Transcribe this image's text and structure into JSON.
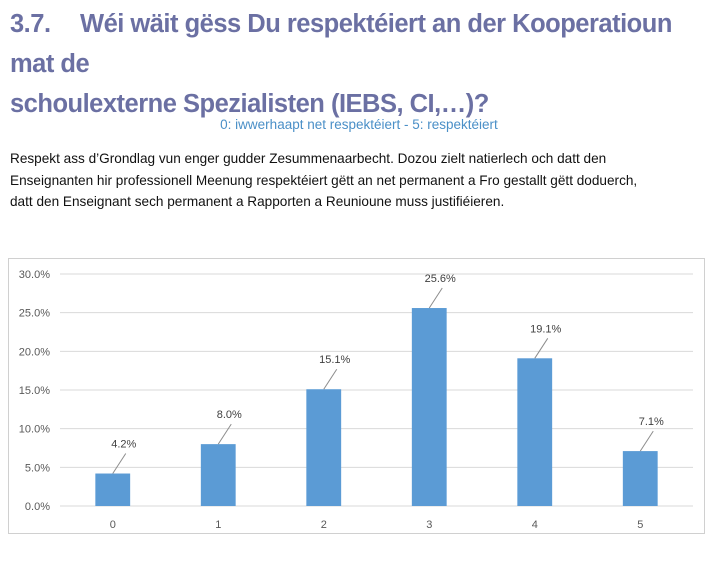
{
  "heading": {
    "number": "3.7.",
    "line1": "Wéi wäit gëss Du respektéiert an der Kooperatioun mat de",
    "line2": "schoulexterne Spezialisten (IEBS, CI,…)?"
  },
  "subtitle": "0: iwwerhaapt net respektéiert - 5: respektéiert",
  "body": {
    "line1": "Respekt ass d’Grondlag vun enger gudder Zesummenaarbecht. Dozou zielt natierlech och datt den",
    "line2": "Enseignanten hir professionell Meenung respektéiert gëtt an net permanent a Fro gestallt gëtt doduerch,",
    "line3": "datt den Enseignant sech permanent a Rapporten a Reunioune muss justifiéieren."
  },
  "colors": {
    "bar": "#5b9bd5",
    "heading": "#6b70a3",
    "subtitle": "#4a8fc7"
  },
  "chart_data": {
    "type": "bar",
    "title": "",
    "xlabel": "",
    "ylabel": "",
    "categories": [
      "0",
      "1",
      "2",
      "3",
      "4",
      "5"
    ],
    "values": [
      4.2,
      8.0,
      15.1,
      25.6,
      19.1,
      7.1
    ],
    "data_labels": [
      "4.2%",
      "8.0%",
      "15.1%",
      "25.6%",
      "19.1%",
      "7.1%"
    ],
    "ylim": [
      0,
      30
    ],
    "yticks": [
      0,
      5,
      10,
      15,
      20,
      25,
      30
    ],
    "ytick_labels": [
      "0.0%",
      "5.0%",
      "10.0%",
      "15.0%",
      "20.0%",
      "25.0%",
      "30.0%"
    ],
    "grid": true,
    "legend": "none"
  }
}
